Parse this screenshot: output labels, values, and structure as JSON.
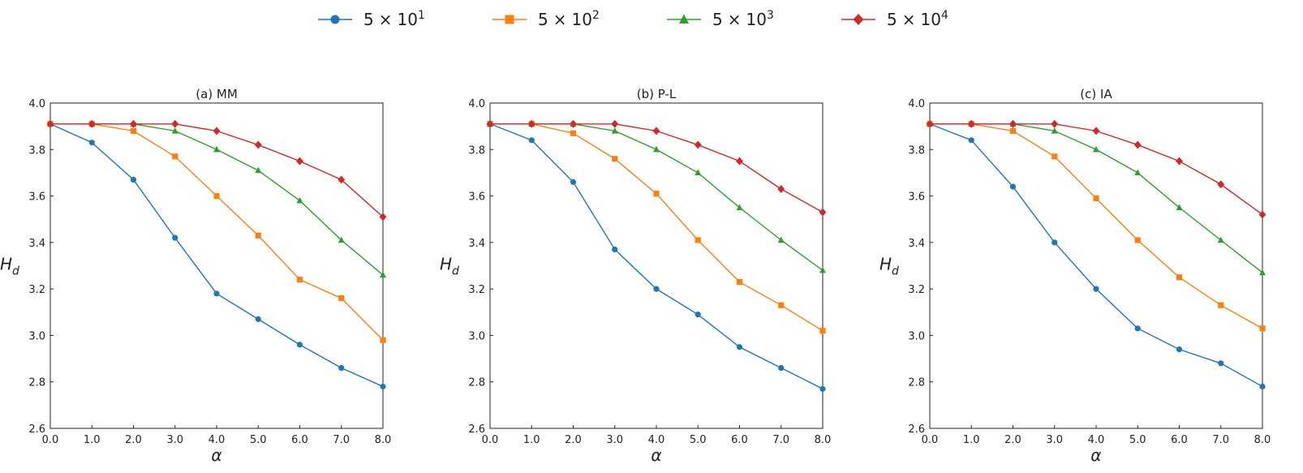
{
  "legend": [
    {
      "mant": "5",
      "times": "×",
      "base": "10",
      "exp": "1",
      "color": "#1f77b4",
      "marker": "circle"
    },
    {
      "mant": "5",
      "times": "×",
      "base": "10",
      "exp": "2",
      "color": "#ff7f0e",
      "marker": "square"
    },
    {
      "mant": "5",
      "times": "×",
      "base": "10",
      "exp": "3",
      "color": "#2ca02c",
      "marker": "triangle"
    },
    {
      "mant": "5",
      "times": "×",
      "base": "10",
      "exp": "4",
      "color": "#d62728",
      "marker": "diamond"
    }
  ],
  "chart_data": [
    {
      "type": "line",
      "title": "(a) MM",
      "xlabel": "α",
      "ylabel_main": "H",
      "ylabel_sub": "d",
      "xlim": [
        0,
        8
      ],
      "ylim": [
        2.6,
        4.0
      ],
      "xticks": [
        "0.0",
        "1.0",
        "2.0",
        "3.0",
        "4.0",
        "5.0",
        "6.0",
        "7.0",
        "8.0"
      ],
      "yticks": [
        "2.6",
        "2.8",
        "3.0",
        "3.2",
        "3.4",
        "3.6",
        "3.8",
        "4.0"
      ],
      "x": [
        0,
        1,
        2,
        3,
        4,
        5,
        6,
        7,
        8
      ],
      "series": [
        {
          "legend_index": 0,
          "values": [
            3.91,
            3.83,
            3.67,
            3.42,
            3.18,
            3.07,
            2.96,
            2.86,
            2.78
          ]
        },
        {
          "legend_index": 1,
          "values": [
            3.91,
            3.91,
            3.88,
            3.77,
            3.6,
            3.43,
            3.24,
            3.16,
            2.98
          ]
        },
        {
          "legend_index": 2,
          "values": [
            3.91,
            3.91,
            3.91,
            3.88,
            3.8,
            3.71,
            3.58,
            3.41,
            3.26
          ]
        },
        {
          "legend_index": 3,
          "values": [
            3.91,
            3.91,
            3.91,
            3.91,
            3.88,
            3.82,
            3.75,
            3.67,
            3.51
          ]
        }
      ]
    },
    {
      "type": "line",
      "title": "(b) P-L",
      "xlabel": "α",
      "ylabel_main": "H",
      "ylabel_sub": "d",
      "xlim": [
        0,
        8
      ],
      "ylim": [
        2.6,
        4.0
      ],
      "xticks": [
        "0.0",
        "1.0",
        "2.0",
        "3.0",
        "4.0",
        "5.0",
        "6.0",
        "7.0",
        "8.0"
      ],
      "yticks": [
        "2.6",
        "2.8",
        "3.0",
        "3.2",
        "3.4",
        "3.6",
        "3.8",
        "4.0"
      ],
      "x": [
        0,
        1,
        2,
        3,
        4,
        5,
        6,
        7,
        8
      ],
      "series": [
        {
          "legend_index": 0,
          "values": [
            3.91,
            3.84,
            3.66,
            3.37,
            3.2,
            3.09,
            2.95,
            2.86,
            2.77
          ]
        },
        {
          "legend_index": 1,
          "values": [
            3.91,
            3.91,
            3.87,
            3.76,
            3.61,
            3.41,
            3.23,
            3.13,
            3.02
          ]
        },
        {
          "legend_index": 2,
          "values": [
            3.91,
            3.91,
            3.91,
            3.88,
            3.8,
            3.7,
            3.55,
            3.41,
            3.28
          ]
        },
        {
          "legend_index": 3,
          "values": [
            3.91,
            3.91,
            3.91,
            3.91,
            3.88,
            3.82,
            3.75,
            3.63,
            3.53
          ]
        }
      ]
    },
    {
      "type": "line",
      "title": "(c) IA",
      "xlabel": "α",
      "ylabel_main": "H",
      "ylabel_sub": "d",
      "xlim": [
        0,
        8
      ],
      "ylim": [
        2.6,
        4.0
      ],
      "xticks": [
        "0.0",
        "1.0",
        "2.0",
        "3.0",
        "4.0",
        "5.0",
        "6.0",
        "7.0",
        "8.0"
      ],
      "yticks": [
        "2.6",
        "2.8",
        "3.0",
        "3.2",
        "3.4",
        "3.6",
        "3.8",
        "4.0"
      ],
      "x": [
        0,
        1,
        2,
        3,
        4,
        5,
        6,
        7,
        8
      ],
      "series": [
        {
          "legend_index": 0,
          "values": [
            3.91,
            3.84,
            3.64,
            3.4,
            3.2,
            3.03,
            2.94,
            2.88,
            2.78
          ]
        },
        {
          "legend_index": 1,
          "values": [
            3.91,
            3.91,
            3.88,
            3.77,
            3.59,
            3.41,
            3.25,
            3.13,
            3.03
          ]
        },
        {
          "legend_index": 2,
          "values": [
            3.91,
            3.91,
            3.91,
            3.88,
            3.8,
            3.7,
            3.55,
            3.41,
            3.27
          ]
        },
        {
          "legend_index": 3,
          "values": [
            3.91,
            3.91,
            3.91,
            3.91,
            3.88,
            3.82,
            3.75,
            3.65,
            3.52
          ]
        }
      ]
    }
  ]
}
